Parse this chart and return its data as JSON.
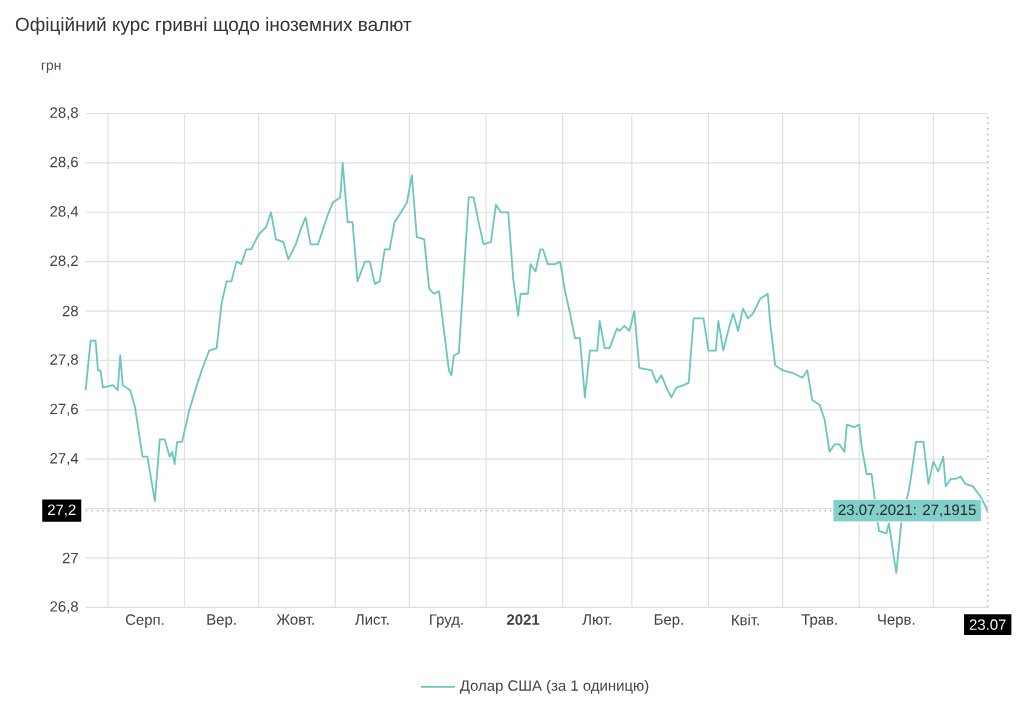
{
  "chart_data": {
    "type": "line",
    "title": "Офіційний курс гривні щодо іноземних валют",
    "ylabel": "грн",
    "xlim": [
      "2020-07-23",
      "2021-07-23"
    ],
    "ylim": [
      26.8,
      28.8
    ],
    "xticks": [
      {
        "value": "2020-08-01",
        "label": null
      },
      {
        "value": "2020-09-01",
        "label": null
      },
      {
        "value": "2020-10-01",
        "label": null
      },
      {
        "value": "2020-11-01",
        "label": null
      },
      {
        "value": "2020-12-01",
        "label": null
      },
      {
        "value": "2021-01-01",
        "label": null
      },
      {
        "value": "2021-02-01",
        "label": null
      },
      {
        "value": "2021-03-01",
        "label": null
      },
      {
        "value": "2021-04-01",
        "label": null
      },
      {
        "value": "2021-05-01",
        "label": null
      },
      {
        "value": "2021-06-01",
        "label": null
      },
      {
        "value": "2021-07-01",
        "label": null
      },
      {
        "value": "2020-08-16",
        "label": "Серп."
      },
      {
        "value": "2020-09-16",
        "label": "Вер."
      },
      {
        "value": "2020-10-16",
        "label": "Жовт."
      },
      {
        "value": "2020-11-16",
        "label": "Лист."
      },
      {
        "value": "2020-12-16",
        "label": "Груд."
      },
      {
        "value": "2021-01-16",
        "label": "**2021**"
      },
      {
        "value": "2021-02-15",
        "label": "Лют."
      },
      {
        "value": "2021-03-16",
        "label": "Бер."
      },
      {
        "value": "2021-04-16",
        "label": "Квіт."
      },
      {
        "value": "2021-05-16",
        "label": "Трав."
      },
      {
        "value": "2021-06-16",
        "label": "Черв."
      },
      {
        "value": "2021-07-23",
        "label": "23.07"
      }
    ],
    "yticks": [
      {
        "value": 26.8,
        "label": "26,8"
      },
      {
        "value": 27,
        "label": "27"
      },
      {
        "value": 27.2,
        "label": null
      },
      {
        "value": 27.4,
        "label": "27,4"
      },
      {
        "value": 27.6,
        "label": "27,6"
      },
      {
        "value": 27.8,
        "label": "27,8"
      },
      {
        "value": 28,
        "label": "28"
      },
      {
        "value": 28.2,
        "label": "28,2"
      },
      {
        "value": 28.4,
        "label": "28,4"
      },
      {
        "value": 28.6,
        "label": "28,6"
      },
      {
        "value": 28.8,
        "label": "28,8"
      }
    ],
    "grid": true,
    "legend": "bottom",
    "marker": "none",
    "ref_lines": [
      {
        "axis": "y",
        "value": 27.1915,
        "label": "27,2",
        "color": "#bbbbbb",
        "line_style": "dotted"
      },
      {
        "axis": "x",
        "value": "2021-07-23",
        "color": "#bbbbbb",
        "line_style": "dotted"
      }
    ],
    "annotations": [
      {
        "text": "23.07.2021: 27,1915",
        "x": "2021-07-23",
        "y": 27.1915
      }
    ],
    "series": [
      {
        "name": "Долар США (за 1 одиницю)",
        "color": "#6ac6bf",
        "x": [
          "2020-07-23",
          "2020-07-25",
          "2020-07-27",
          "2020-07-28",
          "2020-07-29",
          "2020-07-30",
          "2020-08-03",
          "2020-08-05",
          "2020-08-06",
          "2020-08-07",
          "2020-08-10",
          "2020-08-12",
          "2020-08-15",
          "2020-08-17",
          "2020-08-20",
          "2020-08-22",
          "2020-08-24",
          "2020-08-26",
          "2020-08-27",
          "2020-08-28",
          "2020-08-29",
          "2020-08-31",
          "2020-09-03",
          "2020-09-06",
          "2020-09-08",
          "2020-09-11",
          "2020-09-14",
          "2020-09-16",
          "2020-09-18",
          "2020-09-20",
          "2020-09-22",
          "2020-09-24",
          "2020-09-26",
          "2020-09-28",
          "2020-10-01",
          "2020-10-03",
          "2020-10-04",
          "2020-10-06",
          "2020-10-08",
          "2020-10-11",
          "2020-10-13",
          "2020-10-16",
          "2020-10-18",
          "2020-10-20",
          "2020-10-22",
          "2020-10-25",
          "2020-10-29",
          "2020-10-31",
          "2020-11-03",
          "2020-11-04",
          "2020-11-06",
          "2020-11-08",
          "2020-11-10",
          "2020-11-13",
          "2020-11-15",
          "2020-11-17",
          "2020-11-19",
          "2020-11-21",
          "2020-11-23",
          "2020-11-25",
          "2020-11-27",
          "2020-11-30",
          "2020-12-02",
          "2020-12-04",
          "2020-12-07",
          "2020-12-09",
          "2020-12-11",
          "2020-12-13",
          "2020-12-17",
          "2020-12-18",
          "2020-12-19",
          "2020-12-21",
          "2020-12-25",
          "2020-12-27",
          "2020-12-29",
          "2020-12-31",
          "2021-01-03",
          "2021-01-05",
          "2021-01-07",
          "2021-01-10",
          "2021-01-12",
          "2021-01-14",
          "2021-01-15",
          "2021-01-18",
          "2021-01-19",
          "2021-01-21",
          "2021-01-23",
          "2021-01-24",
          "2021-01-26",
          "2021-01-29",
          "2021-01-31",
          "2021-02-02",
          "2021-02-04",
          "2021-02-06",
          "2021-02-08",
          "2021-02-10",
          "2021-02-12",
          "2021-02-15",
          "2021-02-16",
          "2021-02-18",
          "2021-02-20",
          "2021-02-23",
          "2021-02-24",
          "2021-02-26",
          "2021-02-28",
          "2021-03-02",
          "2021-03-04",
          "2021-03-09",
          "2021-03-11",
          "2021-03-13",
          "2021-03-15",
          "2021-03-17",
          "2021-03-19",
          "2021-03-22",
          "2021-03-24",
          "2021-03-26",
          "2021-03-30",
          "2021-04-01",
          "2021-04-04",
          "2021-04-05",
          "2021-04-07",
          "2021-04-09",
          "2021-04-11",
          "2021-04-13",
          "2021-04-15",
          "2021-04-17",
          "2021-04-19",
          "2021-04-22",
          "2021-04-25",
          "2021-04-26",
          "2021-04-28",
          "2021-05-01",
          "2021-05-05",
          "2021-05-09",
          "2021-05-11",
          "2021-05-13",
          "2021-05-16",
          "2021-05-18",
          "2021-05-20",
          "2021-05-22",
          "2021-05-24",
          "2021-05-26",
          "2021-05-27",
          "2021-05-30",
          "2021-06-01",
          "2021-06-02",
          "2021-06-04",
          "2021-06-06",
          "2021-06-09",
          "2021-06-12",
          "2021-06-13",
          "2021-06-16",
          "2021-06-18",
          "2021-06-21",
          "2021-06-22",
          "2021-06-24",
          "2021-06-27",
          "2021-06-29",
          "2021-07-01",
          "2021-07-03",
          "2021-07-05",
          "2021-07-06",
          "2021-07-08",
          "2021-07-10",
          "2021-07-12",
          "2021-07-14",
          "2021-07-17",
          "2021-07-20",
          "2021-07-23"
        ],
        "values": [
          27.68,
          27.88,
          27.88,
          27.76,
          27.76,
          27.69,
          27.7,
          27.68,
          27.82,
          27.7,
          27.68,
          27.61,
          27.41,
          27.41,
          27.23,
          27.48,
          27.48,
          27.41,
          27.43,
          27.38,
          27.47,
          27.47,
          27.6,
          27.7,
          27.76,
          27.84,
          27.85,
          28.03,
          28.12,
          28.12,
          28.2,
          28.19,
          28.25,
          28.25,
          28.31,
          28.33,
          28.34,
          28.4,
          28.29,
          28.28,
          28.21,
          28.27,
          28.33,
          28.38,
          28.27,
          28.27,
          28.39,
          28.44,
          28.46,
          28.6,
          28.36,
          28.36,
          28.12,
          28.2,
          28.2,
          28.11,
          28.12,
          28.25,
          28.25,
          28.36,
          28.39,
          28.44,
          28.55,
          28.3,
          28.29,
          28.09,
          28.07,
          28.08,
          27.76,
          27.74,
          27.82,
          27.83,
          28.46,
          28.46,
          28.36,
          28.27,
          28.28,
          28.43,
          28.4,
          28.4,
          28.13,
          27.98,
          28.07,
          28.07,
          28.19,
          28.16,
          28.25,
          28.25,
          28.19,
          28.19,
          28.2,
          28.08,
          27.99,
          27.89,
          27.89,
          27.65,
          27.84,
          27.84,
          27.96,
          27.85,
          27.85,
          27.93,
          27.92,
          27.94,
          27.92,
          28.0,
          27.77,
          27.76,
          27.71,
          27.74,
          27.69,
          27.65,
          27.69,
          27.7,
          27.71,
          27.97,
          27.97,
          27.84,
          27.84,
          27.96,
          27.84,
          27.92,
          27.99,
          27.92,
          28.01,
          27.97,
          27.99,
          28.05,
          28.07,
          27.95,
          27.78,
          27.76,
          27.75,
          27.73,
          27.76,
          27.64,
          27.62,
          27.56,
          27.43,
          27.46,
          27.46,
          27.43,
          27.54,
          27.53,
          27.54,
          27.45,
          27.34,
          27.34,
          27.11,
          27.1,
          27.14,
          26.94,
          27.14,
          27.27,
          27.33,
          27.47,
          27.47,
          27.3,
          27.39,
          27.35,
          27.41,
          27.29,
          27.32,
          27.32,
          27.33,
          27.3,
          27.29,
          27.25,
          27.1915
        ]
      }
    ]
  }
}
